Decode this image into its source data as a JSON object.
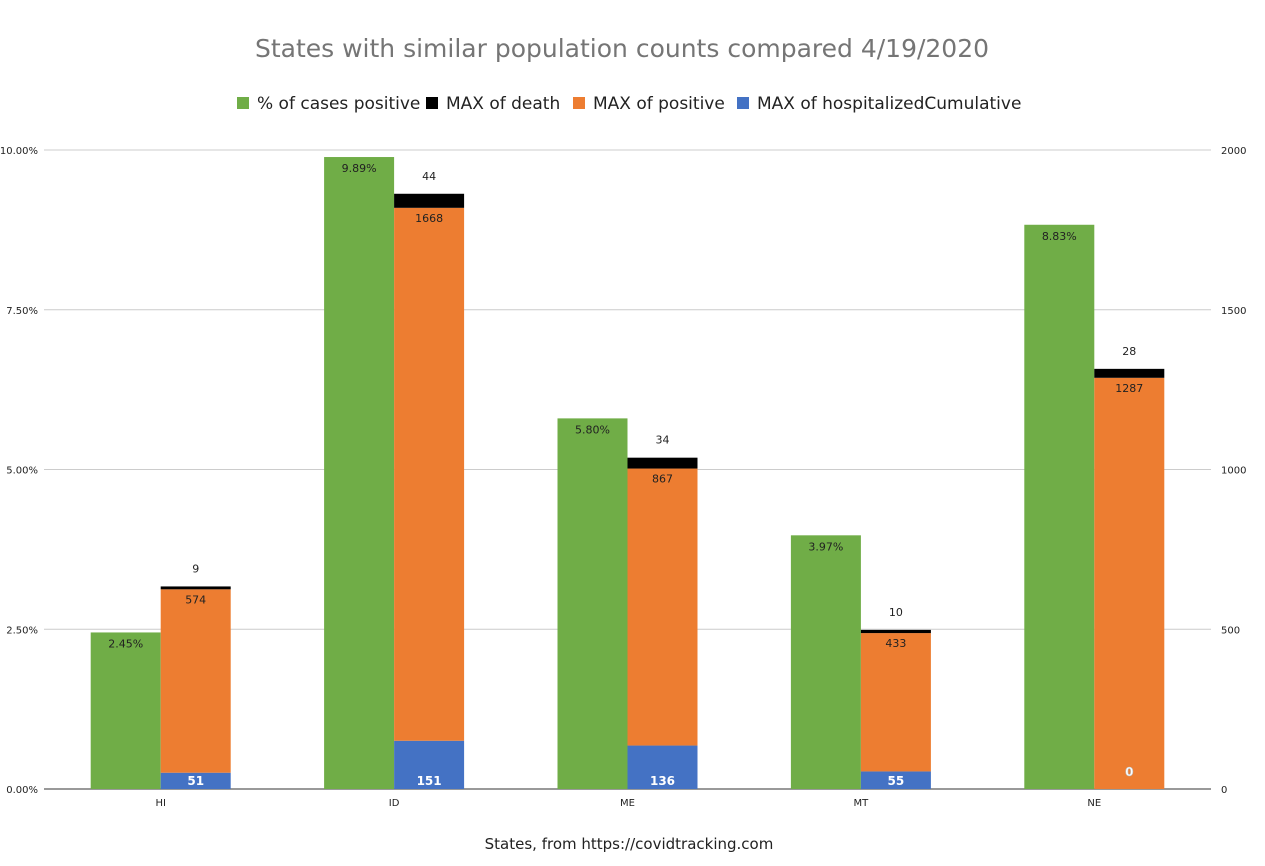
{
  "chart_data": {
    "type": "bar",
    "title": "States with similar population counts compared 4/19/2020",
    "xlabel": "States, from https://covidtracking.com",
    "ylabel": "",
    "ylabel_right": "",
    "categories": [
      "HI",
      "ID",
      "ME",
      "MT",
      "NE"
    ],
    "legend_position": "top",
    "grid": true,
    "left_axis": {
      "ylim": [
        0,
        10
      ],
      "ticks": [
        0,
        2.5,
        5,
        7.5,
        10
      ],
      "tick_labels": [
        "0.00%",
        "2.50%",
        "5.00%",
        "7.50%",
        "10.00%"
      ]
    },
    "right_axis": {
      "ylim": [
        0,
        2000
      ],
      "ticks": [
        0,
        500,
        1000,
        1500,
        2000
      ],
      "tick_labels": [
        "0",
        "500",
        "1000",
        "1500",
        "2000"
      ]
    },
    "series": [
      {
        "name": "% of cases positive",
        "axis": "left",
        "color": "#70ad47",
        "values": [
          2.45,
          9.89,
          5.8,
          3.97,
          8.83
        ],
        "labels": [
          "2.45%",
          "9.89%",
          "5.80%",
          "3.97%",
          "8.83%"
        ]
      },
      {
        "name": "MAX of death",
        "axis": "right",
        "stack": "right-stack",
        "color": "#000000",
        "values": [
          9,
          44,
          34,
          10,
          28
        ],
        "labels": [
          "9",
          "44",
          "34",
          "10",
          "28"
        ]
      },
      {
        "name": "MAX of positive",
        "axis": "right",
        "stack": "right-stack",
        "color": "#ed7d31",
        "values": [
          574,
          1668,
          867,
          433,
          1287
        ],
        "labels": [
          "574",
          "1668",
          "867",
          "433",
          "1287"
        ]
      },
      {
        "name": "MAX of hospitalizedCumulative",
        "axis": "right",
        "stack": "right-stack",
        "color": "#4472c4",
        "values": [
          51,
          151,
          136,
          55,
          0
        ],
        "labels": [
          "51",
          "151",
          "136",
          "55",
          "0"
        ]
      }
    ]
  }
}
